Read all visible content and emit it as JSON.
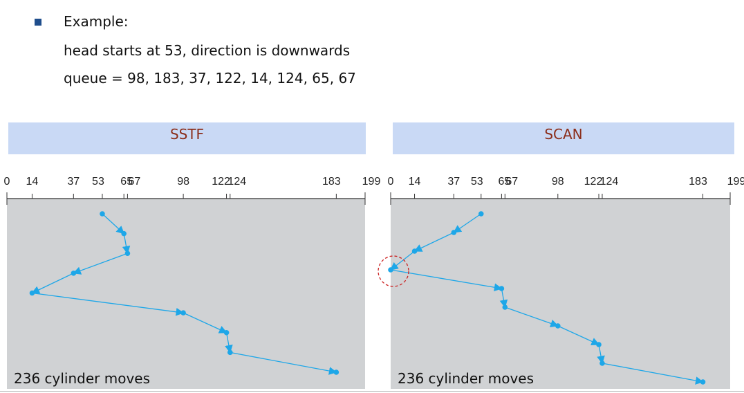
{
  "example": {
    "heading": "Example:",
    "line1": "head starts at 53, direction is downwards",
    "line2": "queue = 98, 183, 37, 122, 14, 124, 65, 67"
  },
  "axis": {
    "ticks": [
      0,
      14,
      37,
      53,
      65,
      67,
      98,
      122,
      124,
      183,
      199
    ],
    "tick_labels": [
      "0",
      "14",
      "37",
      "53",
      "65",
      "67",
      "98",
      "122",
      "124",
      "183",
      "199"
    ]
  },
  "colors": {
    "path": "#1ea7e8",
    "plot_bg": "#d0d2d4",
    "title_bg": "#c9d9f5",
    "title_text": "#8b2d1a",
    "highlight": "#cc2222"
  },
  "panels": [
    {
      "title": "SSTF",
      "caption": "236 cylinder moves",
      "sequence": [
        53,
        65,
        67,
        37,
        14,
        98,
        122,
        124,
        183
      ]
    },
    {
      "title": "SCAN",
      "caption": "236 cylinder moves",
      "sequence": [
        53,
        37,
        14,
        0,
        65,
        67,
        98,
        122,
        124,
        183
      ],
      "highlight_cylinder": 0
    }
  ]
}
